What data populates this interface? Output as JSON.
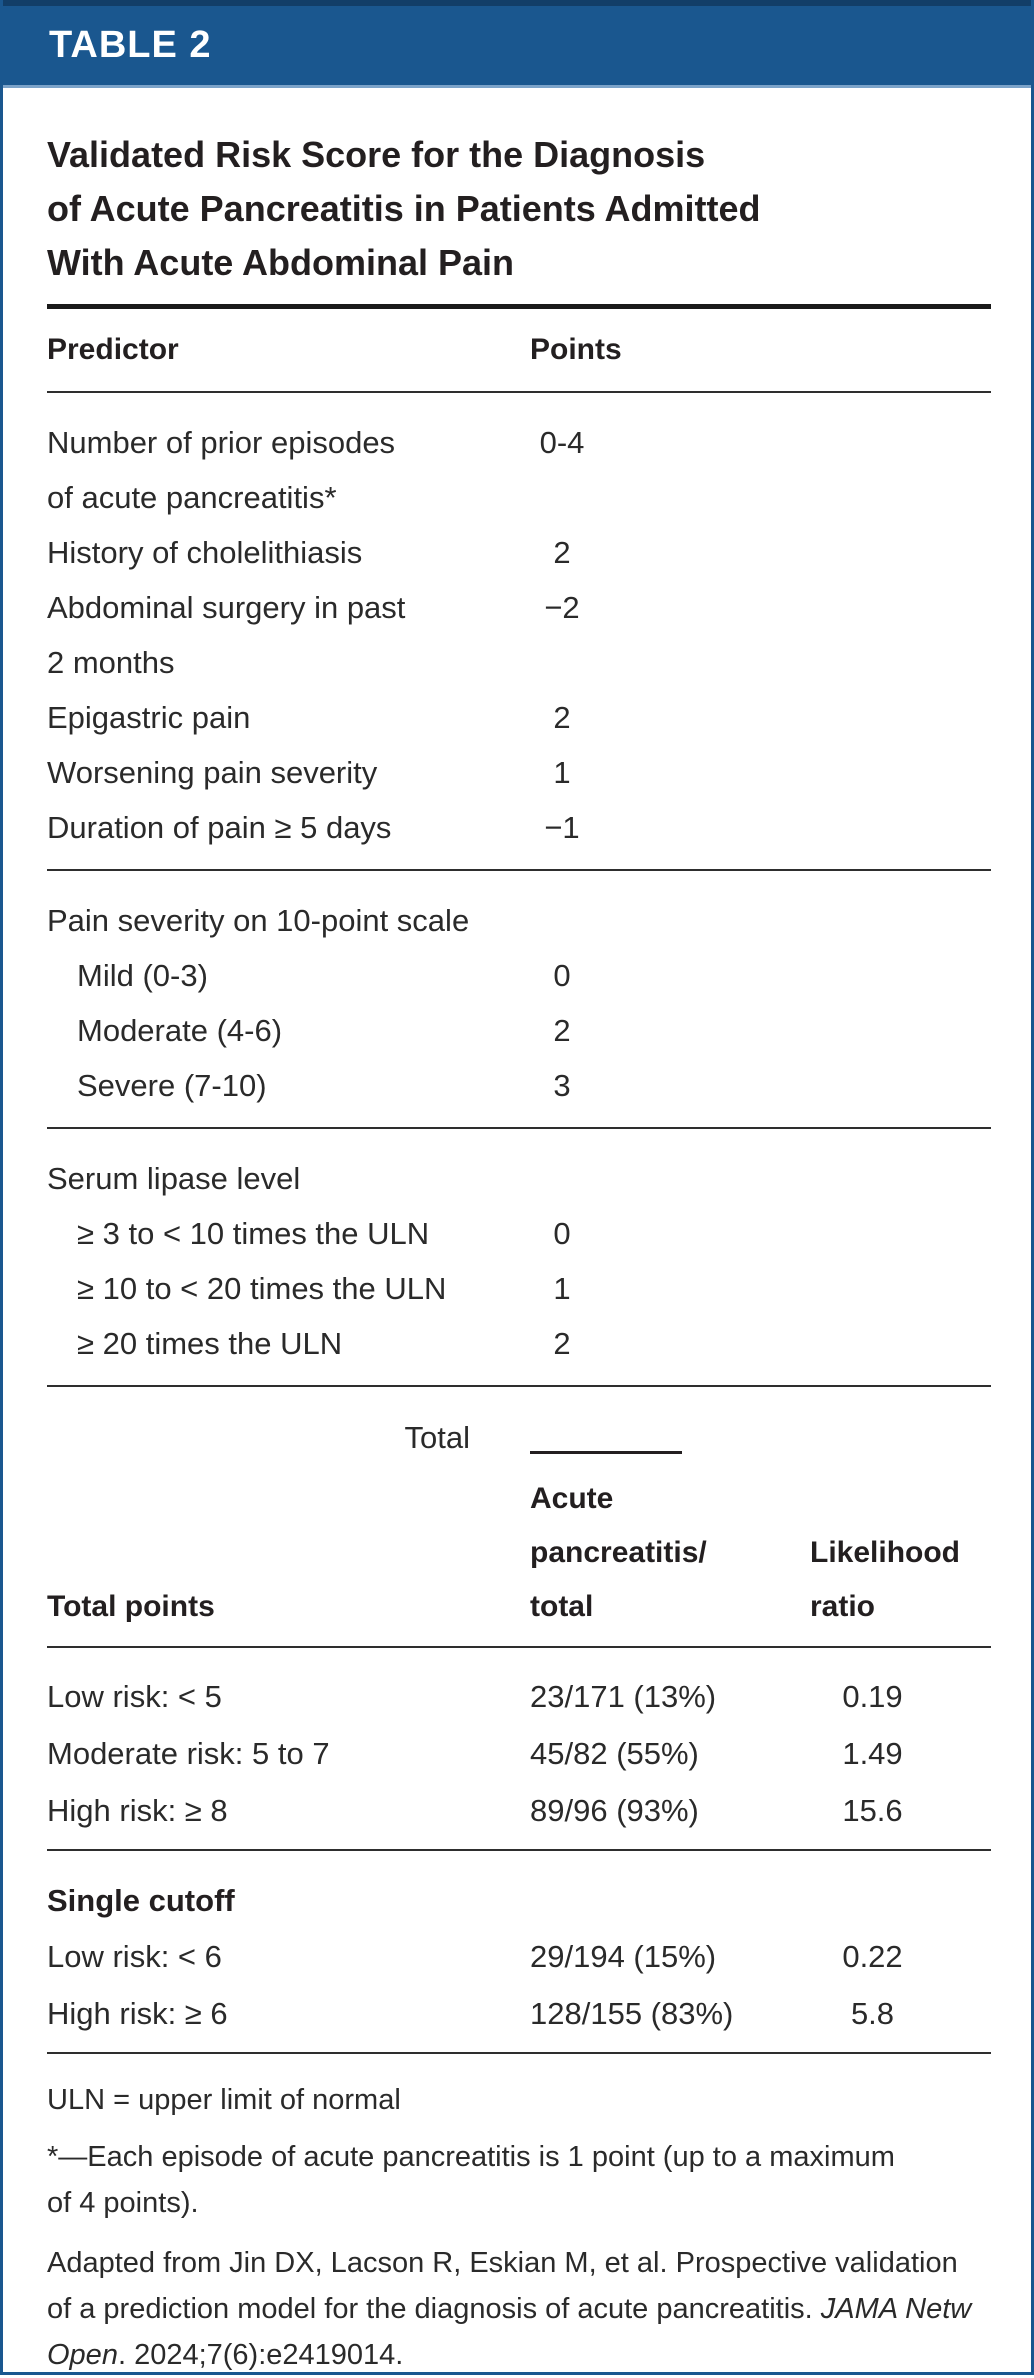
{
  "colors": {
    "band_blue": "#1A578F",
    "band_edge_dark": "#123E68",
    "band_edge_light": "#7CA3C9",
    "text_dark": "#231F20"
  },
  "band": {
    "label": "TABLE 2"
  },
  "title": {
    "l1": "Validated Risk Score for the Diagnosis",
    "l2": "of Acute Pancreatitis in Patients Admitted",
    "l3": "With Acute Abdominal Pain"
  },
  "score": {
    "head": {
      "predictor": "Predictor",
      "points": "Points"
    },
    "r1": {
      "l1": "Number of prior episodes",
      "l2": "of acute pancreatitis*",
      "pts": "0-4"
    },
    "r2": {
      "l1": "History of cholelithiasis",
      "pts": "2"
    },
    "r3": {
      "l1": "Abdominal surgery in past",
      "l2": "2 months",
      "pts": "−2"
    },
    "r4": {
      "l1": "Epigastric pain",
      "pts": "2"
    },
    "r5": {
      "l1": "Worsening pain severity",
      "pts": "1"
    },
    "r6": {
      "l1": "Duration of pain ≥ 5 days",
      "pts": "−1"
    },
    "g1": {
      "label": "Pain severity on 10-point scale"
    },
    "r7": {
      "l1": "Mild (0-3)",
      "pts": "0"
    },
    "r8": {
      "l1": "Moderate (4-6)",
      "pts": "2"
    },
    "r9": {
      "l1": "Severe (7-10)",
      "pts": "3"
    },
    "g2": {
      "label": "Serum lipase level"
    },
    "r10": {
      "l1": "≥ 3 to < 10 times the ULN",
      "pts": "0"
    },
    "r11": {
      "l1": "≥ 10 to < 20 times the ULN",
      "pts": "1"
    },
    "r12": {
      "l1": "≥ 20 times the ULN",
      "pts": "2"
    },
    "total_label": "Total"
  },
  "risk": {
    "head": {
      "col1": "Total points",
      "col2_l1": "Acute",
      "col2_l2": "pancreatitis/",
      "col2_l3": "total",
      "col3_l1": "Likelihood",
      "col3_l2": "ratio"
    },
    "r1": {
      "c1": "Low risk: < 5",
      "c2": "23/171 (13%)",
      "c3": "0.19"
    },
    "r2": {
      "c1": "Moderate risk: 5 to 7",
      "c2": "45/82 (55%)",
      "c3": "1.49"
    },
    "r3": {
      "c1": "High risk: ≥ 8",
      "c2": "89/96 (93%)",
      "c3": "15.6"
    },
    "single_cutoff_label": "Single cutoff",
    "r4": {
      "c1": "Low risk: < 6",
      "c2": "29/194 (15%)",
      "c3": "0.22"
    },
    "r5": {
      "c1": "High risk: ≥ 6",
      "c2": "128/155 (83%)",
      "c3": "5.8"
    }
  },
  "footnotes": {
    "uln": "ULN = upper limit of normal",
    "star": "*—Each episode of acute pancreatitis is 1 point (up to a maximum of 4 points).",
    "cite_pre": "Adapted from Jin DX, Lacson R, Eskian M, et al. Prospective validation of a prediction model for the diagnosis of acute pancreatitis. ",
    "cite_italic": "JAMA Netw Open",
    "cite_post": ". 2024;7(6):e2419014."
  }
}
